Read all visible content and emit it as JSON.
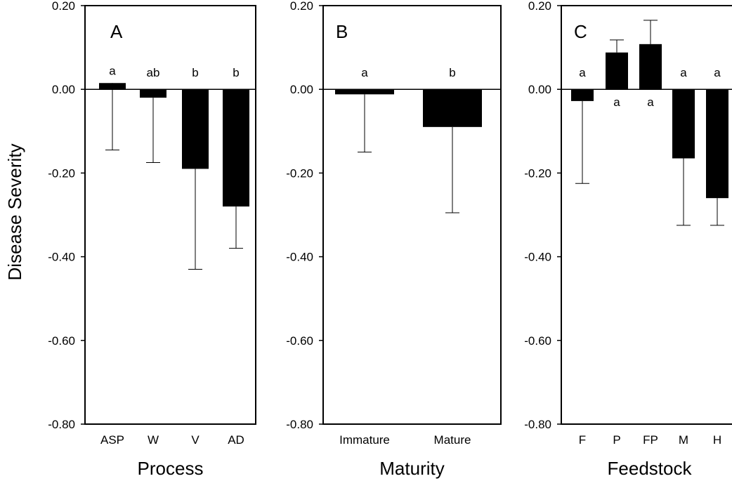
{
  "figure": {
    "ylabel": "Disease Severity"
  },
  "chart_data": [
    {
      "type": "bar",
      "panel_label": "A",
      "xlabel": "Process",
      "ylim": [
        -0.8,
        0.2
      ],
      "yticks": [
        "0.20",
        "0.00",
        "-0.20",
        "-0.40",
        "-0.60",
        "-0.80"
      ],
      "categories": [
        "ASP",
        "W",
        "V",
        "AD"
      ],
      "values": [
        0.015,
        -0.02,
        -0.19,
        -0.28
      ],
      "error_low": [
        -0.145,
        -0.175,
        -0.43,
        -0.38
      ],
      "significance": [
        "a",
        "ab",
        "b",
        "b"
      ]
    },
    {
      "type": "bar",
      "panel_label": "B",
      "xlabel": "Maturity",
      "ylim": [
        -0.8,
        0.2
      ],
      "yticks": [
        "0.20",
        "0.00",
        "-0.20",
        "-0.40",
        "-0.60",
        "-0.80"
      ],
      "categories": [
        "Immature",
        "Mature"
      ],
      "values": [
        -0.012,
        -0.09
      ],
      "error_low": [
        -0.15,
        -0.295
      ],
      "significance": [
        "a",
        "b"
      ]
    },
    {
      "type": "bar",
      "panel_label": "C",
      "xlabel": "Feedstock",
      "ylim": [
        -0.8,
        0.2
      ],
      "yticks": [
        "0.20",
        "0.00",
        "-0.20",
        "-0.40",
        "-0.60",
        "-0.80"
      ],
      "categories": [
        "F",
        "P",
        "FP",
        "M",
        "H"
      ],
      "values": [
        -0.028,
        0.088,
        0.108,
        -0.165,
        -0.26
      ],
      "error_low": [
        -0.225,
        0.118,
        0.165,
        -0.325,
        -0.325
      ],
      "significance": [
        "a",
        "a",
        "a",
        "a",
        "a"
      ]
    }
  ]
}
